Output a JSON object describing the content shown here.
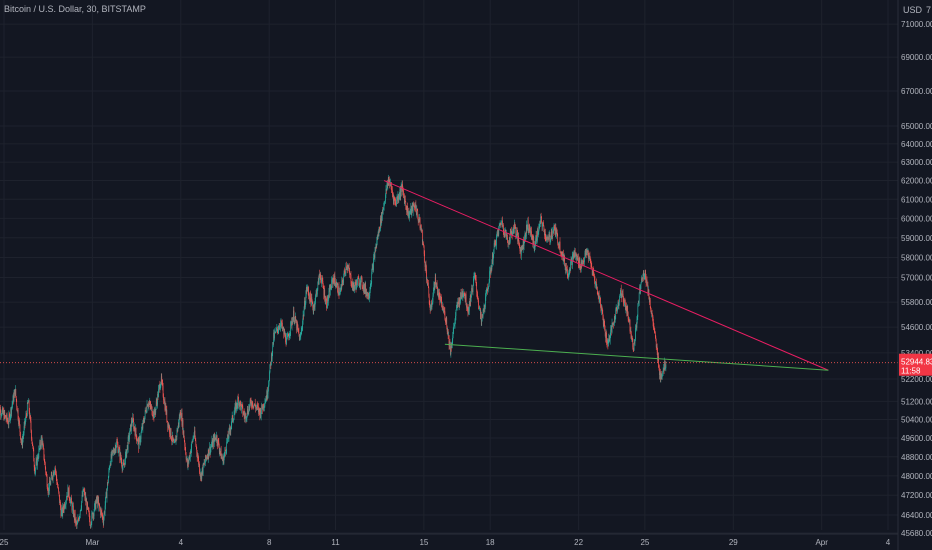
{
  "header": {
    "title": "Bitcoin / U.S. Dollar, 30, BITSTAMP",
    "currency": "USD",
    "top_price_partial": "7"
  },
  "colors": {
    "background": "#131722",
    "grid": "#1e222d",
    "up": "#26a69a",
    "down": "#ef5350",
    "axis_text": "#b2b5be",
    "resistance_line": "#e91e63",
    "support_line": "#4caf50",
    "price_line": "#ef5350",
    "price_label_bg": "#f23645"
  },
  "chart_data": {
    "type": "candlestick",
    "ylim": [
      45400,
      72600
    ],
    "y_ticks": [
      45680,
      46400,
      47200,
      48000,
      48800,
      49600,
      50400,
      51200,
      52200,
      53400,
      54600,
      55800,
      57000,
      58000,
      59000,
      60000,
      61000,
      62000,
      63000,
      64000,
      65000,
      67000,
      69000,
      71000
    ],
    "x_ticks": [
      {
        "label": "25",
        "day": 0
      },
      {
        "label": "Mar",
        "day": 4
      },
      {
        "label": "4",
        "day": 8
      },
      {
        "label": "8",
        "day": 12
      },
      {
        "label": "11",
        "day": 15
      },
      {
        "label": "15",
        "day": 19
      },
      {
        "label": "18",
        "day": 22
      },
      {
        "label": "22",
        "day": 26
      },
      {
        "label": "25",
        "day": 29
      },
      {
        "label": "29",
        "day": 33
      },
      {
        "label": "Apr",
        "day": 37
      },
      {
        "label": "4",
        "day": 40
      }
    ],
    "price_path": [
      [
        -0.3,
        51000
      ],
      [
        0.2,
        50300
      ],
      [
        0.5,
        51700
      ],
      [
        0.8,
        49300
      ],
      [
        1.1,
        51200
      ],
      [
        1.4,
        48200
      ],
      [
        1.7,
        49600
      ],
      [
        2.0,
        47400
      ],
      [
        2.3,
        48400
      ],
      [
        2.6,
        46400
      ],
      [
        2.9,
        47400
      ],
      [
        3.3,
        45900
      ],
      [
        3.6,
        47400
      ],
      [
        3.9,
        46100
      ],
      [
        4.2,
        47000
      ],
      [
        4.5,
        46200
      ],
      [
        4.8,
        48600
      ],
      [
        5.1,
        49400
      ],
      [
        5.4,
        48300
      ],
      [
        5.8,
        50400
      ],
      [
        6.1,
        49300
      ],
      [
        6.5,
        51200
      ],
      [
        6.8,
        50600
      ],
      [
        7.1,
        52200
      ],
      [
        7.4,
        50300
      ],
      [
        7.7,
        49200
      ],
      [
        8.0,
        50800
      ],
      [
        8.3,
        48400
      ],
      [
        8.6,
        49800
      ],
      [
        8.9,
        48000
      ],
      [
        9.2,
        48900
      ],
      [
        9.6,
        49700
      ],
      [
        9.9,
        48600
      ],
      [
        10.3,
        50300
      ],
      [
        10.6,
        51300
      ],
      [
        10.9,
        50500
      ],
      [
        11.2,
        51200
      ],
      [
        11.6,
        50700
      ],
      [
        11.9,
        51500
      ],
      [
        12.2,
        54100
      ],
      [
        12.5,
        54800
      ],
      [
        12.8,
        53900
      ],
      [
        13.1,
        55200
      ],
      [
        13.4,
        54000
      ],
      [
        13.7,
        56500
      ],
      [
        14.0,
        55500
      ],
      [
        14.3,
        57200
      ],
      [
        14.6,
        55700
      ],
      [
        14.9,
        57000
      ],
      [
        15.2,
        56200
      ],
      [
        15.5,
        57700
      ],
      [
        15.8,
        56500
      ],
      [
        16.1,
        56900
      ],
      [
        16.5,
        56100
      ],
      [
        16.8,
        58400
      ],
      [
        17.1,
        60200
      ],
      [
        17.4,
        62100
      ],
      [
        17.7,
        60800
      ],
      [
        18.0,
        61600
      ],
      [
        18.3,
        60200
      ],
      [
        18.6,
        60700
      ],
      [
        18.9,
        59300
      ],
      [
        19.1,
        57300
      ],
      [
        19.3,
        55300
      ],
      [
        19.5,
        56900
      ],
      [
        19.7,
        56000
      ],
      [
        20.0,
        55000
      ],
      [
        20.2,
        53500
      ],
      [
        20.5,
        55600
      ],
      [
        20.8,
        56400
      ],
      [
        21.0,
        55400
      ],
      [
        21.3,
        57100
      ],
      [
        21.6,
        54800
      ],
      [
        21.9,
        56600
      ],
      [
        22.2,
        58600
      ],
      [
        22.5,
        59900
      ],
      [
        22.8,
        58800
      ],
      [
        23.1,
        59600
      ],
      [
        23.4,
        58300
      ],
      [
        23.7,
        59700
      ],
      [
        24.0,
        58600
      ],
      [
        24.3,
        59900
      ],
      [
        24.6,
        58800
      ],
      [
        24.9,
        59500
      ],
      [
        25.2,
        58400
      ],
      [
        25.5,
        57200
      ],
      [
        25.8,
        58200
      ],
      [
        26.1,
        57600
      ],
      [
        26.4,
        58300
      ],
      [
        26.7,
        57000
      ],
      [
        27.0,
        55700
      ],
      [
        27.3,
        53800
      ],
      [
        27.6,
        54900
      ],
      [
        27.9,
        56300
      ],
      [
        28.2,
        55400
      ],
      [
        28.5,
        53600
      ],
      [
        28.8,
        56700
      ],
      [
        29.0,
        57300
      ],
      [
        29.3,
        55300
      ],
      [
        29.5,
        53800
      ],
      [
        29.7,
        52300
      ],
      [
        29.95,
        52944
      ]
    ],
    "trendlines": [
      {
        "role": "resistance",
        "from": [
          17.2,
          62000
        ],
        "to": [
          37.3,
          52600
        ]
      },
      {
        "role": "support",
        "from": [
          19.95,
          53800
        ],
        "to": [
          37.3,
          52600
        ]
      }
    ],
    "last_price": {
      "value": "52944.83",
      "countdown": "11:58",
      "y": 52944.83
    }
  }
}
